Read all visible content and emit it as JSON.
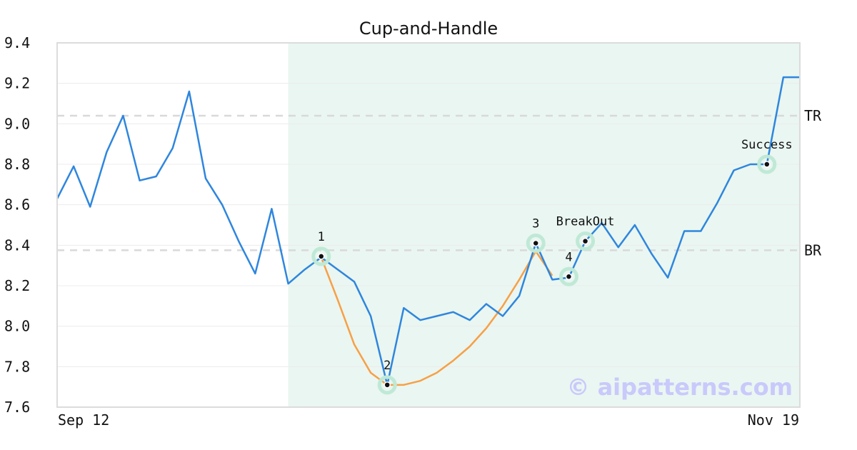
{
  "chart_data": {
    "type": "line",
    "title": "Cup-and-Handle",
    "xlabel": "",
    "ylabel": "",
    "ylim": [
      7.6,
      9.4
    ],
    "y_ticks": [
      "9.4",
      "9.2",
      "9.0",
      "8.8",
      "8.6",
      "8.4",
      "8.2",
      "8.0",
      "7.8",
      "7.6"
    ],
    "x_tick_labels": [
      "Sep 12",
      "Nov 19"
    ],
    "grid": true,
    "colors": {
      "price": "#2e86de",
      "pattern": "#f7a046",
      "highlight_band": "#eaf6f1",
      "marker_ring": "#bfe9d6",
      "reference_line": "#d9d9d9",
      "watermark": "#c9c9fb"
    },
    "series": [
      {
        "values": [
          8.63,
          8.79,
          8.59,
          8.86,
          9.04,
          8.72,
          8.74,
          8.88,
          9.16,
          8.73,
          8.6,
          8.42,
          8.26,
          8.58,
          8.21,
          8.28,
          8.34,
          8.28,
          8.22,
          8.05,
          7.71,
          8.09,
          8.03,
          8.05,
          8.07,
          8.03,
          8.11,
          8.05,
          8.15,
          8.41,
          8.23,
          8.24,
          8.42,
          8.51,
          8.39,
          8.5,
          8.36,
          8.24,
          8.47,
          8.47,
          8.61,
          8.77,
          8.8,
          8.8,
          9.23,
          9.23
        ]
      },
      {
        "role": "pattern",
        "x_index": [
          16,
          17,
          18,
          19,
          20,
          21,
          22,
          23,
          24,
          25,
          26,
          27,
          28,
          29,
          30
        ],
        "values": [
          8.34,
          8.13,
          7.91,
          7.77,
          7.71,
          7.71,
          7.73,
          7.77,
          7.83,
          7.9,
          7.99,
          8.1,
          8.23,
          8.37,
          8.25
        ]
      }
    ],
    "highlight_range_index": [
      14,
      45
    ],
    "reference_lines": [
      {
        "label": "TR",
        "y": 9.04
      },
      {
        "label": "BR",
        "y": 8.375
      }
    ],
    "annotations": [
      {
        "label": "1",
        "x_index": 16,
        "y": 8.345
      },
      {
        "label": "2",
        "x_index": 20,
        "y": 7.71
      },
      {
        "label": "3",
        "x_index": 29,
        "y": 8.41
      },
      {
        "label": "4",
        "x_index": 31,
        "y": 8.245
      },
      {
        "label": "BreakOut",
        "x_index": 32,
        "y": 8.42
      },
      {
        "label": "Success",
        "x_index": 43,
        "y": 8.8
      }
    ]
  },
  "watermark": "© aipatterns.com"
}
